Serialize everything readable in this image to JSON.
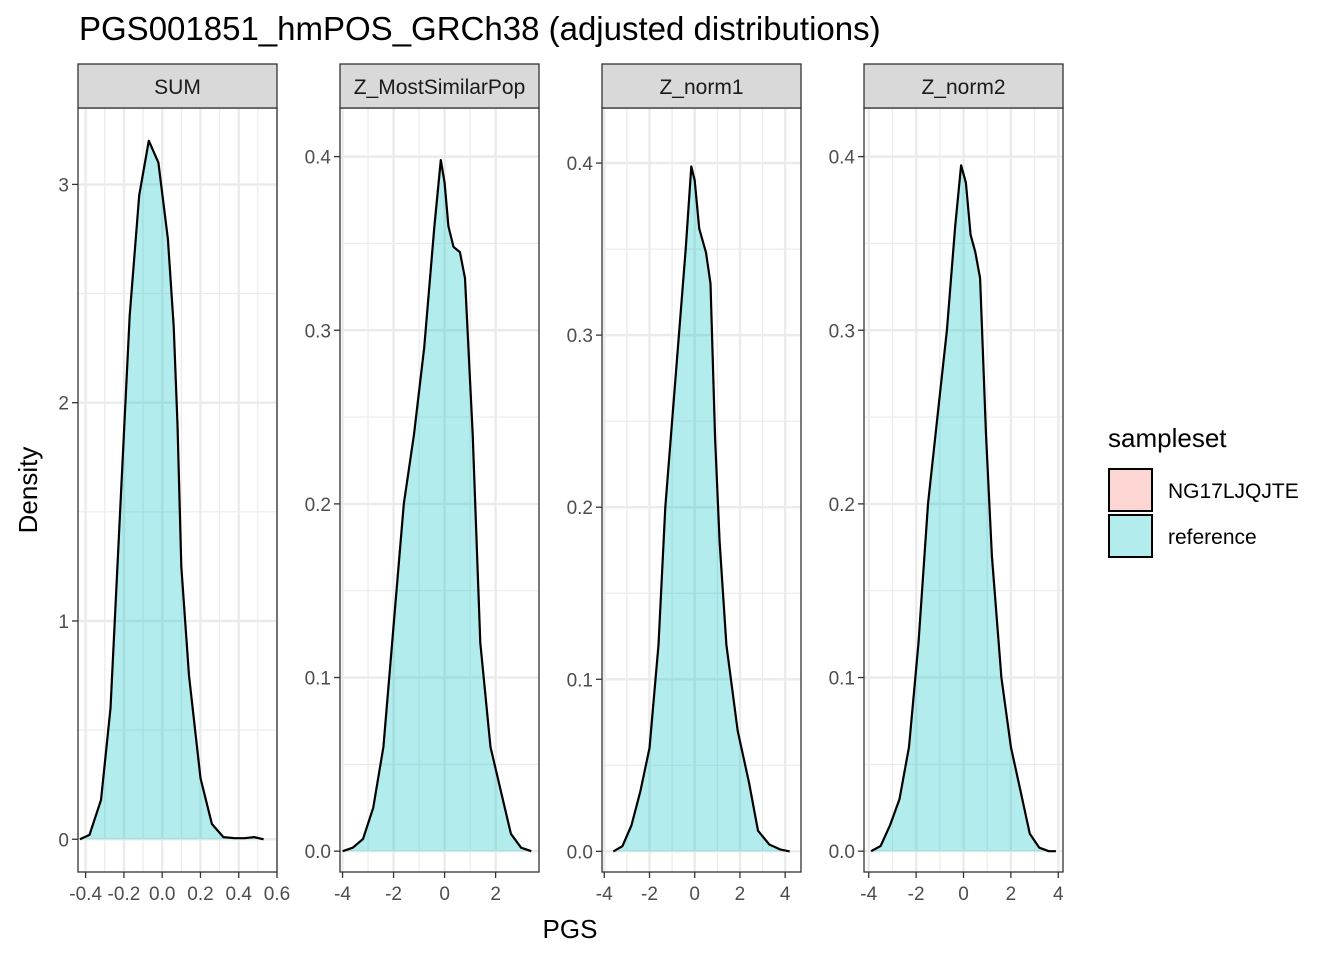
{
  "chart_data": {
    "type": "area",
    "title": "PGS001851_hmPOS_GRCh38 (adjusted distributions)",
    "xlabel": "PGS",
    "ylabel": "Density",
    "grid": true,
    "legend": {
      "title": "sampleset",
      "position": "right",
      "entries": [
        {
          "name": "NG17LJQJTE",
          "color": "#F8766D"
        },
        {
          "name": "reference",
          "color": "#00BFC4"
        }
      ]
    },
    "panels": [
      {
        "name": "SUM",
        "xlim": [
          -0.44,
          0.6
        ],
        "ylim": [
          -0.15,
          3.35
        ],
        "xticks": [
          -0.4,
          -0.2,
          0.0,
          0.2,
          0.4,
          0.6
        ],
        "xtick_labels": [
          "-0.4",
          "-0.2",
          "0.0",
          "0.2",
          "0.4",
          "0.6"
        ],
        "yticks": [
          0,
          1,
          2,
          3
        ],
        "ytick_labels": [
          "0",
          "1",
          "2",
          "3"
        ],
        "series": [
          {
            "name": "reference",
            "x": [
              -0.43,
              -0.38,
              -0.32,
              -0.27,
              -0.22,
              -0.17,
              -0.12,
              -0.07,
              -0.02,
              0.03,
              0.06,
              0.08,
              0.1,
              0.14,
              0.2,
              0.26,
              0.32,
              0.38,
              0.43,
              0.48,
              0.53
            ],
            "y": [
              0.0,
              0.02,
              0.18,
              0.6,
              1.5,
              2.4,
              2.95,
              3.2,
              3.1,
              2.75,
              2.35,
              1.9,
              1.25,
              0.75,
              0.28,
              0.07,
              0.01,
              0.005,
              0.005,
              0.01,
              0.0
            ]
          }
        ]
      },
      {
        "name": "Z_MostSimilarPop",
        "xlim": [
          -4.1,
          3.7
        ],
        "ylim": [
          -0.012,
          0.428
        ],
        "xticks": [
          -4,
          -2,
          0,
          2
        ],
        "xtick_labels": [
          "-4",
          "-2",
          "0",
          "2"
        ],
        "yticks": [
          0.0,
          0.1,
          0.2,
          0.3,
          0.4
        ],
        "ytick_labels": [
          "0.0",
          "0.1",
          "0.2",
          "0.3",
          "0.4"
        ],
        "series": [
          {
            "name": "reference",
            "x": [
              -4.0,
              -3.6,
              -3.2,
              -2.8,
              -2.4,
              -2.0,
              -1.6,
              -1.2,
              -0.8,
              -0.4,
              -0.15,
              0.0,
              0.15,
              0.35,
              0.6,
              0.8,
              1.1,
              1.4,
              1.8,
              2.2,
              2.6,
              3.0,
              3.4
            ],
            "y": [
              0.0,
              0.002,
              0.007,
              0.025,
              0.06,
              0.13,
              0.2,
              0.24,
              0.29,
              0.36,
              0.398,
              0.385,
              0.36,
              0.348,
              0.345,
              0.33,
              0.24,
              0.12,
              0.06,
              0.035,
              0.01,
              0.002,
              0.0
            ]
          }
        ]
      },
      {
        "name": "Z_norm1",
        "xlim": [
          -4.1,
          4.7
        ],
        "ylim": [
          -0.012,
          0.432
        ],
        "xticks": [
          -4,
          -2,
          0,
          2,
          4
        ],
        "xtick_labels": [
          "-4",
          "-2",
          "0",
          "2",
          "4"
        ],
        "yticks": [
          0.0,
          0.1,
          0.2,
          0.3,
          0.4
        ],
        "ytick_labels": [
          "0.0",
          "0.1",
          "0.2",
          "0.3",
          "0.4"
        ],
        "series": [
          {
            "name": "reference",
            "x": [
              -3.6,
              -3.2,
              -2.8,
              -2.4,
              -2.0,
              -1.6,
              -1.3,
              -1.0,
              -0.7,
              -0.4,
              -0.15,
              0.0,
              0.2,
              0.5,
              0.7,
              0.9,
              1.1,
              1.4,
              1.9,
              2.4,
              2.8,
              3.3,
              3.8,
              4.2
            ],
            "y": [
              0.0,
              0.003,
              0.015,
              0.035,
              0.06,
              0.12,
              0.2,
              0.25,
              0.3,
              0.35,
              0.398,
              0.39,
              0.362,
              0.348,
              0.33,
              0.24,
              0.18,
              0.12,
              0.07,
              0.04,
              0.012,
              0.004,
              0.001,
              0.0
            ]
          }
        ]
      },
      {
        "name": "Z_norm2",
        "xlim": [
          -4.2,
          4.2
        ],
        "ylim": [
          -0.012,
          0.428
        ],
        "xticks": [
          -4,
          -2,
          0,
          2,
          4
        ],
        "xtick_labels": [
          "-4",
          "-2",
          "0",
          "2",
          "4"
        ],
        "yticks": [
          0.0,
          0.1,
          0.2,
          0.3,
          0.4
        ],
        "ytick_labels": [
          "0.0",
          "0.1",
          "0.2",
          "0.3",
          "0.4"
        ],
        "series": [
          {
            "name": "reference",
            "x": [
              -3.9,
              -3.5,
              -3.1,
              -2.7,
              -2.3,
              -1.9,
              -1.5,
              -1.1,
              -0.7,
              -0.35,
              -0.1,
              0.1,
              0.3,
              0.5,
              0.7,
              0.95,
              1.2,
              1.6,
              2.0,
              2.4,
              2.8,
              3.2,
              3.6,
              3.9
            ],
            "y": [
              0.0,
              0.003,
              0.015,
              0.03,
              0.06,
              0.12,
              0.2,
              0.25,
              0.3,
              0.36,
              0.395,
              0.385,
              0.355,
              0.345,
              0.33,
              0.24,
              0.17,
              0.1,
              0.06,
              0.035,
              0.01,
              0.002,
              0.0,
              0.0
            ]
          }
        ]
      }
    ]
  }
}
